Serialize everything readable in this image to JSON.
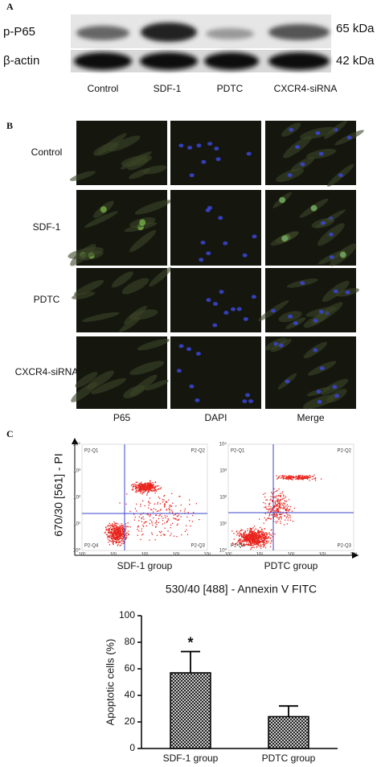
{
  "panel_a": {
    "label": "A",
    "rows": [
      "p-P65",
      "β-actin"
    ],
    "sizes": [
      "65 kDa",
      "42 kDa"
    ],
    "lanes": [
      "Control",
      "SDF-1",
      "PDTC",
      "CXCR4-siRNA"
    ]
  },
  "panel_b": {
    "label": "B",
    "rows": [
      "Control",
      "SDF-1",
      "PDTC",
      "CXCR4-siRNA"
    ],
    "columns": [
      "P65",
      "DAPI",
      "Merge"
    ]
  },
  "panel_c": {
    "label": "C",
    "y_label": "670/30 [561] - PI",
    "x_label": "530/40 [488] - Annexin V FITC",
    "groups": [
      "SDF-1 group",
      "PDTC group"
    ],
    "quadrants": [
      "P2-Q1",
      "P2-Q2",
      "P2-Q3",
      "P2-Q4"
    ],
    "axis_ticks": [
      "10⁰",
      "10¹",
      "10²",
      "10³",
      "10⁴"
    ]
  },
  "chart_data": {
    "type": "bar",
    "y_label": "Apoptotic cells (%)",
    "categories": [
      "SDF-1 group",
      "PDTC group"
    ],
    "values": [
      57,
      24
    ],
    "errors": [
      16,
      8
    ],
    "annotations": [
      "*",
      null
    ],
    "color": "#000000",
    "ylim": [
      0,
      100
    ],
    "yticks": [
      0,
      20,
      40,
      60,
      80,
      100
    ]
  }
}
